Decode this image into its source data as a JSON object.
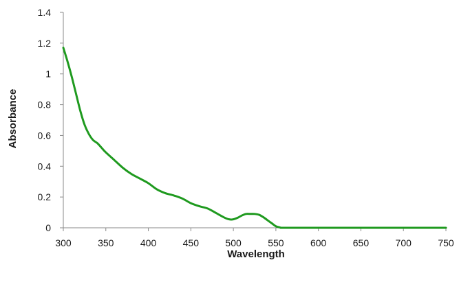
{
  "chart_data": {
    "type": "line",
    "title": "",
    "xlabel": "Wavelength",
    "ylabel": "Absorbance",
    "xlim": [
      300,
      750
    ],
    "ylim": [
      0,
      1.4
    ],
    "x_ticks": [
      "300",
      "350",
      "400",
      "450",
      "500",
      "550",
      "600",
      "650",
      "700",
      "750"
    ],
    "y_ticks": [
      "0",
      "0.2",
      "0.4",
      "0.6",
      "0.8",
      "1",
      "1.2",
      "1.4"
    ],
    "grid": false,
    "legend": "none",
    "series": [
      {
        "color": "#1f9a1f",
        "x": [
          300,
          305,
          310,
          315,
          320,
          325,
          330,
          335,
          340,
          345,
          350,
          360,
          370,
          380,
          390,
          400,
          410,
          420,
          430,
          440,
          450,
          460,
          470,
          480,
          490,
          495,
          500,
          505,
          510,
          515,
          520,
          525,
          530,
          535,
          540,
          545,
          550,
          555,
          560,
          600,
          650,
          700,
          750
        ],
        "y": [
          1.17,
          1.08,
          0.98,
          0.87,
          0.76,
          0.67,
          0.61,
          0.57,
          0.55,
          0.52,
          0.49,
          0.44,
          0.39,
          0.35,
          0.32,
          0.29,
          0.25,
          0.225,
          0.21,
          0.19,
          0.16,
          0.14,
          0.125,
          0.095,
          0.065,
          0.055,
          0.055,
          0.065,
          0.08,
          0.09,
          0.09,
          0.09,
          0.085,
          0.07,
          0.05,
          0.03,
          0.01,
          0.002,
          0,
          0,
          0,
          0,
          0
        ]
      }
    ]
  }
}
